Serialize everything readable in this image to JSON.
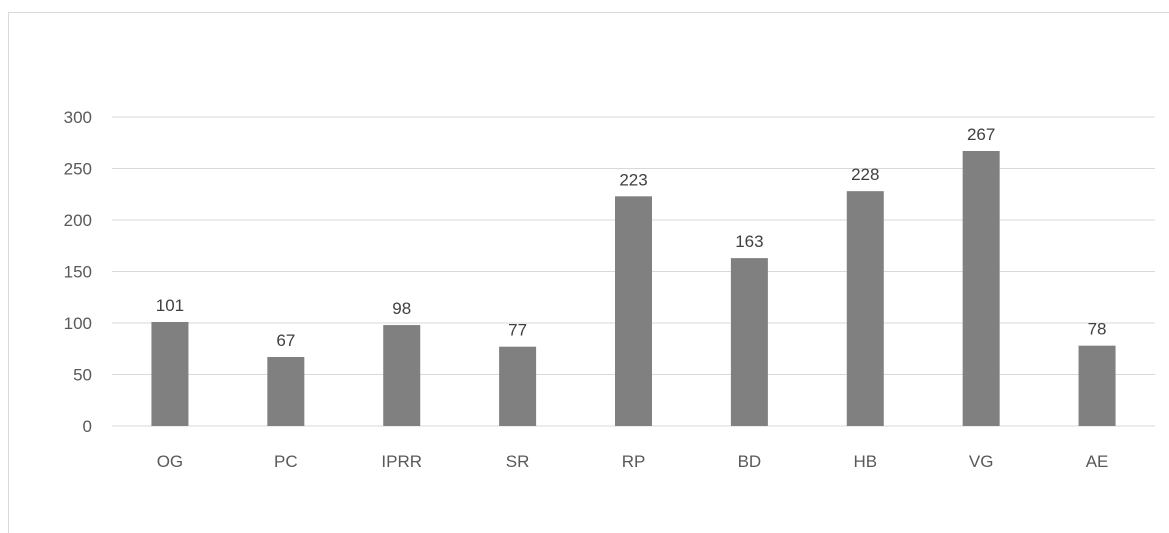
{
  "chart_data": {
    "type": "bar",
    "title": "",
    "xlabel": "",
    "ylabel": "",
    "categories": [
      "OG",
      "PC",
      "IPRR",
      "SR",
      "RP",
      "BD",
      "HB",
      "VG",
      "AE"
    ],
    "values": [
      101,
      67,
      98,
      77,
      223,
      163,
      228,
      267,
      78
    ],
    "data_labels": [
      "101",
      "67",
      "98",
      "77",
      "223",
      "163",
      "228",
      "267",
      "78"
    ],
    "ylim": [
      0,
      300
    ],
    "yticks": [
      0,
      50,
      100,
      150,
      200,
      250,
      300
    ],
    "ytick_labels": [
      "0",
      "50",
      "100",
      "150",
      "200",
      "250",
      "300"
    ],
    "grid": true,
    "legend": "none",
    "bar_color": "#808080",
    "grid_color": "#d9d9d9"
  }
}
